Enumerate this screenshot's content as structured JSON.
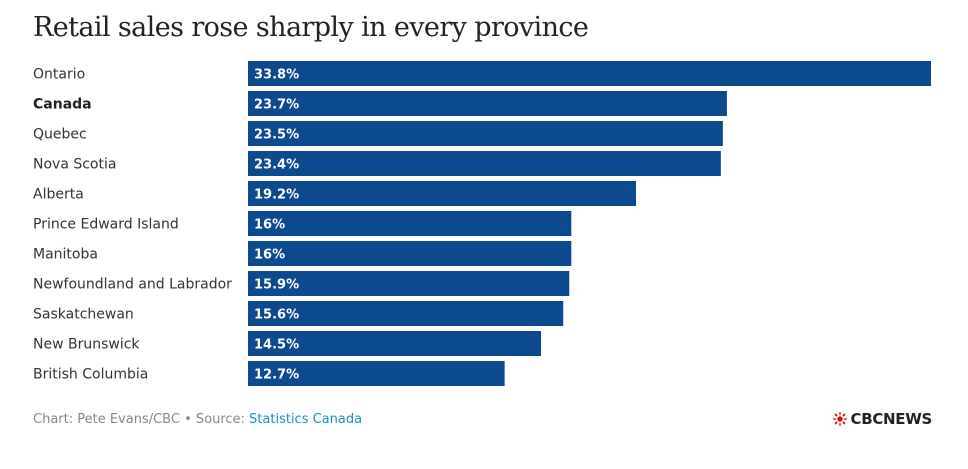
{
  "chart_data": {
    "type": "bar",
    "orientation": "horizontal",
    "title": "Retail sales rose sharply in every province",
    "categories": [
      "Ontario",
      "Canada",
      "Quebec",
      "Nova Scotia",
      "Alberta",
      "Prince Edward Island",
      "Manitoba",
      "Newfoundland and Labrador",
      "Saskatchewan",
      "New Brunswick",
      "British Columbia"
    ],
    "values": [
      33.8,
      23.7,
      23.5,
      23.4,
      19.2,
      16,
      16,
      15.9,
      15.6,
      14.5,
      12.7
    ],
    "value_labels": [
      "33.8%",
      "23.7%",
      "23.5%",
      "23.4%",
      "19.2%",
      "16%",
      "16%",
      "15.9%",
      "15.6%",
      "14.5%",
      "12.7%"
    ],
    "highlighted_category": "Canada",
    "bar_color": "#0b4a8f",
    "xlim": [
      0,
      33.8
    ],
    "grid": false,
    "legend": "none"
  },
  "footer": {
    "credit": "Chart: Pete Evans/CBC • Source: ",
    "source": "Statistics Canada",
    "source_color": "#1a8fc2"
  },
  "logo": {
    "text": "CBCNEWS",
    "icon": "cbc-gem-icon",
    "color": "#e60505"
  }
}
